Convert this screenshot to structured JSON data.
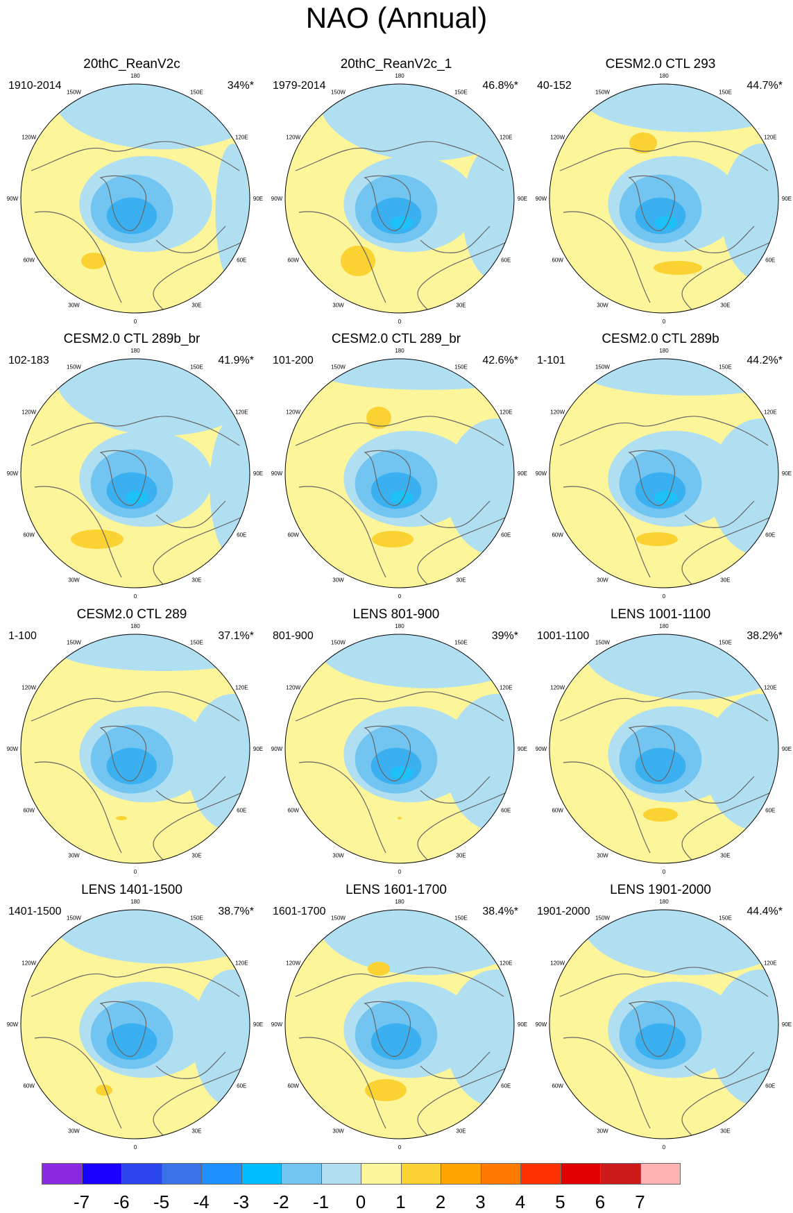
{
  "title": "NAO (Annual)",
  "colors": {
    "pos1": "#fdf59a",
    "pos2": "#fad333",
    "neg1": "#b0dff2",
    "neg2": "#72c5f0",
    "neg3": "#3bb0f0",
    "neg4": "#1ec0f8",
    "coast": "#666666",
    "rim": "#000000"
  },
  "longitude_labels": {
    "n": "180",
    "nne": "150E",
    "ene": "120E",
    "e": "90E",
    "ese": "60E",
    "sse": "30E",
    "s": "0",
    "ssw": "30W",
    "wsw": "60W",
    "w": "90W",
    "wnw": "120W",
    "nnw": "150W"
  },
  "panels": [
    {
      "title": "20thC_ReanV2c",
      "period": "1910-2014",
      "pct": "34%*"
    },
    {
      "title": "20thC_ReanV2c_1",
      "period": "1979-2014",
      "pct": "46.8%*"
    },
    {
      "title": "CESM2.0 CTL 293",
      "period": "40-152",
      "pct": "44.7%*"
    },
    {
      "title": "CESM2.0 CTL 289b_br",
      "period": "102-183",
      "pct": "41.9%*"
    },
    {
      "title": "CESM2.0 CTL 289_br",
      "period": "101-200",
      "pct": "42.6%*"
    },
    {
      "title": "CESM2.0 CTL 289b",
      "period": "1-101",
      "pct": "44.2%*"
    },
    {
      "title": "CESM2.0 CTL 289",
      "period": "1-100",
      "pct": "37.1%*"
    },
    {
      "title": "LENS 801-900",
      "period": "801-900",
      "pct": "39%*"
    },
    {
      "title": "LENS 1001-1100",
      "period": "1001-1100",
      "pct": "38.2%*"
    },
    {
      "title": "LENS 1401-1500",
      "period": "1401-1500",
      "pct": "38.7%*"
    },
    {
      "title": "LENS 1601-1700",
      "period": "1601-1700",
      "pct": "38.4%*"
    },
    {
      "title": "LENS 1901-2000",
      "period": "1901-2000",
      "pct": "44.4%*"
    }
  ],
  "colorbar": {
    "labels": [
      "-7",
      "-6",
      "-5",
      "-4",
      "-3",
      "-2",
      "-1",
      "0",
      "1",
      "2",
      "3",
      "4",
      "5",
      "6",
      "7"
    ],
    "colors": [
      "#8a2be2",
      "#1a00ff",
      "#2a45ee",
      "#3a72ea",
      "#1e90ff",
      "#00bfff",
      "#72c5f0",
      "#b0dff2",
      "#fdf59a",
      "#fad333",
      "#ffa500",
      "#ff7b00",
      "#ff3300",
      "#e00000",
      "#cc1a1a",
      "#ffb3b3"
    ]
  }
}
